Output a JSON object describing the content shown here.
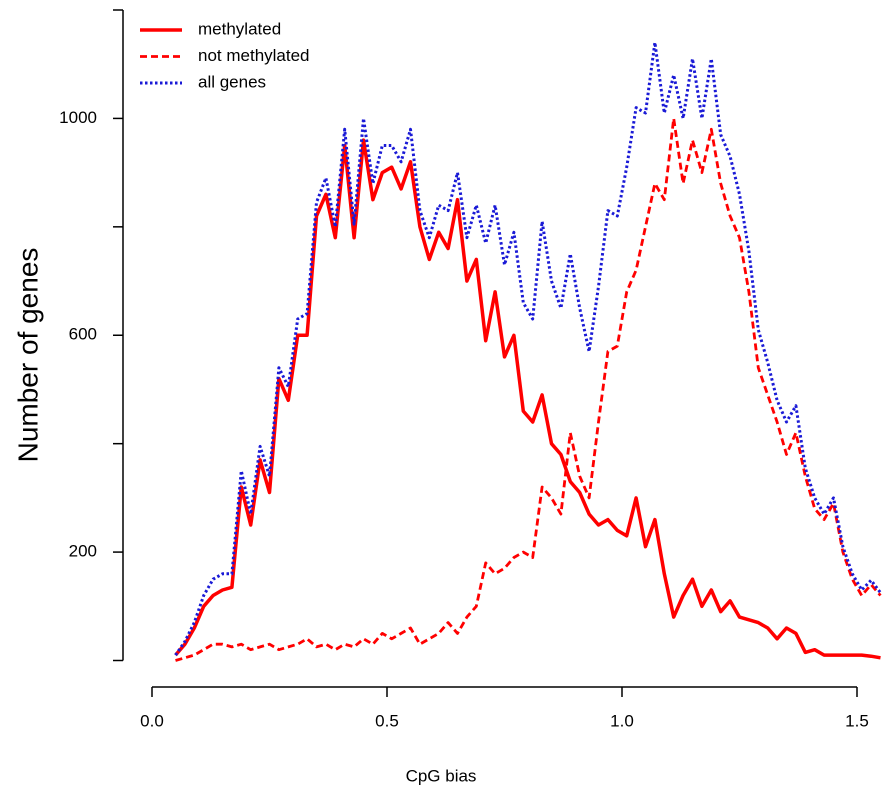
{
  "chart_data": {
    "type": "line",
    "xlabel": "CpG bias",
    "ylabel": "Number of genes",
    "xlim": [
      0,
      1.55
    ],
    "ylim": [
      0,
      1200
    ],
    "xticks": [
      {
        "value": 0,
        "label": "0.0"
      },
      0.5,
      {
        "value": 1,
        "label": "1.0"
      },
      1.5
    ],
    "yticks": [
      200,
      600,
      1000
    ],
    "yminor_ticks": [
      0,
      400,
      800,
      1200
    ],
    "legend": "top-left",
    "x": [
      0.05,
      0.07,
      0.09,
      0.11,
      0.13,
      0.15,
      0.17,
      0.19,
      0.21,
      0.23,
      0.25,
      0.27,
      0.29,
      0.31,
      0.33,
      0.35,
      0.37,
      0.39,
      0.41,
      0.43,
      0.45,
      0.47,
      0.49,
      0.51,
      0.53,
      0.55,
      0.57,
      0.59,
      0.61,
      0.63,
      0.65,
      0.67,
      0.69,
      0.71,
      0.73,
      0.75,
      0.77,
      0.79,
      0.81,
      0.83,
      0.85,
      0.87,
      0.89,
      0.91,
      0.93,
      0.95,
      0.97,
      0.99,
      1.01,
      1.03,
      1.05,
      1.07,
      1.09,
      1.11,
      1.13,
      1.15,
      1.17,
      1.19,
      1.21,
      1.23,
      1.25,
      1.27,
      1.29,
      1.31,
      1.33,
      1.35,
      1.37,
      1.39,
      1.41,
      1.43,
      1.45,
      1.47,
      1.49,
      1.51,
      1.53,
      1.55
    ],
    "series": [
      {
        "name": "methylated",
        "color": "#ff0000",
        "linestyle": "solid",
        "values": [
          10,
          30,
          60,
          100,
          120,
          130,
          135,
          320,
          250,
          370,
          310,
          520,
          480,
          600,
          600,
          820,
          860,
          780,
          950,
          780,
          960,
          850,
          900,
          910,
          870,
          920,
          800,
          740,
          790,
          760,
          850,
          700,
          740,
          590,
          680,
          560,
          600,
          460,
          440,
          490,
          400,
          380,
          330,
          310,
          270,
          250,
          260,
          240,
          230,
          300,
          210,
          260,
          160,
          80,
          120,
          150,
          100,
          130,
          90,
          110,
          80,
          75,
          70,
          60,
          40,
          60,
          50,
          15,
          20,
          10,
          10,
          10,
          10,
          10,
          8,
          5
        ]
      },
      {
        "name": "not methylated",
        "color": "#ff0000",
        "linestyle": "dashed",
        "values": [
          0,
          5,
          10,
          20,
          30,
          30,
          25,
          30,
          20,
          25,
          30,
          20,
          25,
          30,
          40,
          25,
          30,
          20,
          30,
          25,
          40,
          30,
          50,
          40,
          50,
          60,
          30,
          40,
          50,
          70,
          50,
          80,
          100,
          180,
          160,
          170,
          190,
          200,
          190,
          320,
          300,
          270,
          420,
          340,
          300,
          440,
          570,
          580,
          680,
          720,
          800,
          880,
          850,
          1000,
          880,
          960,
          900,
          980,
          880,
          820,
          780,
          680,
          540,
          490,
          440,
          380,
          420,
          340,
          280,
          260,
          290,
          200,
          150,
          120,
          140,
          120
        ]
      },
      {
        "name": "all genes",
        "color": "#1a1ad6",
        "linestyle": "dotted",
        "values": [
          10,
          35,
          70,
          120,
          150,
          160,
          160,
          350,
          270,
          395,
          340,
          540,
          505,
          630,
          640,
          845,
          890,
          800,
          980,
          805,
          1000,
          880,
          950,
          950,
          920,
          980,
          830,
          780,
          840,
          830,
          900,
          780,
          840,
          770,
          840,
          730,
          790,
          660,
          630,
          810,
          700,
          650,
          750,
          650,
          570,
          690,
          830,
          820,
          910,
          1020,
          1010,
          1140,
          1010,
          1080,
          1000,
          1110,
          1000,
          1110,
          970,
          930,
          860,
          755,
          610,
          550,
          480,
          440,
          470,
          355,
          300,
          270,
          300,
          210,
          160,
          130,
          148,
          125
        ]
      }
    ]
  }
}
